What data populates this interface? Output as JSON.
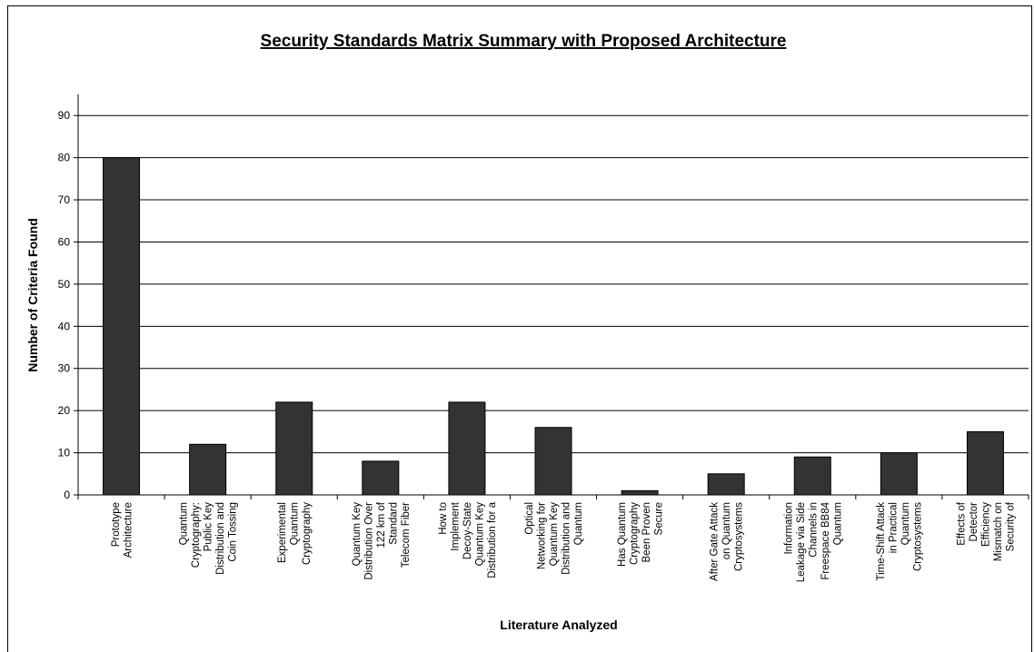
{
  "chart_data": {
    "type": "bar",
    "title": "Security Standards Matrix Summary with Proposed Architecture",
    "xlabel": "Literature Analyzed",
    "ylabel": "Number of Criteria Found",
    "ylim": [
      0,
      95
    ],
    "yticks": [
      0,
      10,
      20,
      30,
      40,
      50,
      60,
      70,
      80,
      90
    ],
    "grid": true,
    "legend": "none",
    "bar_color": "#333333",
    "categories": [
      [
        "Prototype",
        "Architecture"
      ],
      [
        "Quantum",
        "Cryptography:",
        "Public Key",
        "Distribution and",
        "Coin Tossing"
      ],
      [
        "Experimental",
        "Quantum",
        "Cryptography"
      ],
      [
        "Quantum Key",
        "Distribution Over",
        "122 km of",
        "Standard",
        "Telecom Fiber"
      ],
      [
        "How to",
        "Implement",
        "Decoy-State",
        "Quantum Key",
        "Distribution for a"
      ],
      [
        "Optical",
        "Networking for",
        "Quantum Key",
        "Distribution and",
        "Quantum"
      ],
      [
        "Has Quantum",
        "Cryptography",
        "Been Proven",
        "Secure"
      ],
      [
        "After Gate Attack",
        "on Quantum",
        "Cryptosystems"
      ],
      [
        "Information",
        "Leakage via Side",
        "Channels in",
        "Freespace BB84",
        "Quantum"
      ],
      [
        "Time-Shift Attack",
        "in Practical",
        "Quantum",
        "Cryptosystems"
      ],
      [
        "Effects of",
        "Detector",
        "Efficiency",
        "Mismatch on",
        "Security of"
      ]
    ],
    "values": [
      80,
      12,
      22,
      8,
      22,
      16,
      1,
      5,
      9,
      10,
      15
    ]
  }
}
